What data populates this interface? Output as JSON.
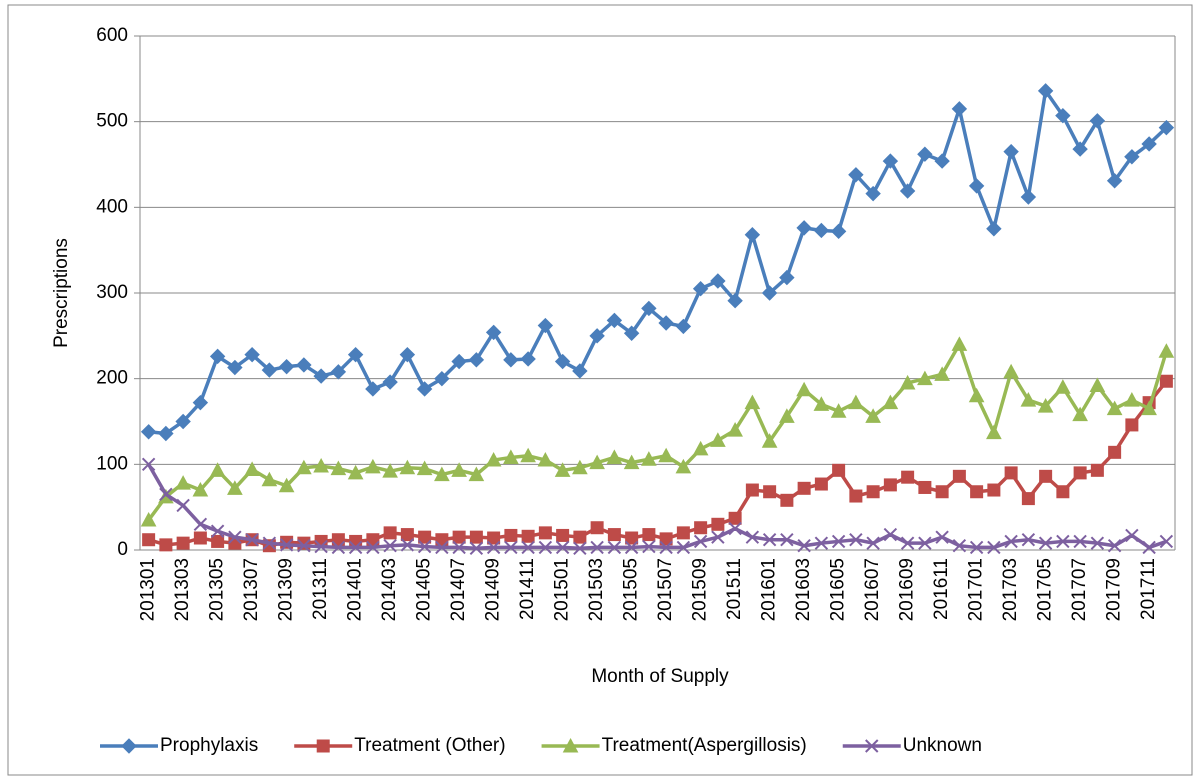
{
  "chart_data": {
    "type": "line",
    "x_label": "Month of Supply",
    "y_label": "Prescriptions",
    "categories": [
      "201301",
      null,
      "201303",
      null,
      "201305",
      null,
      "201307",
      null,
      "201309",
      null,
      "201311",
      null,
      "201401",
      null,
      "201403",
      null,
      "201405",
      null,
      "201407",
      null,
      "201409",
      null,
      "201411",
      null,
      "201501",
      null,
      "201503",
      null,
      "201505",
      null,
      "201507",
      null,
      "201509",
      null,
      "201511",
      null,
      "201601",
      null,
      "201603",
      null,
      "201605",
      null,
      "201607",
      null,
      "201609",
      null,
      "201611",
      null,
      "201701",
      null,
      "201703",
      null,
      "201705",
      null,
      "201707",
      null,
      "201709",
      null,
      "201711",
      null
    ],
    "series": [
      {
        "name": "Prophylaxis",
        "color": "#4a7ebb",
        "marker": "diamond",
        "values": [
          138,
          136,
          150,
          172,
          226,
          213,
          228,
          210,
          214,
          216,
          203,
          208,
          228,
          188,
          196,
          228,
          188,
          200,
          220,
          222,
          254,
          222,
          223,
          262,
          220,
          209,
          250,
          268,
          253,
          282,
          265,
          261,
          305,
          314,
          291,
          368,
          300,
          318,
          376,
          373,
          372,
          438,
          416,
          454,
          419,
          462,
          454,
          515,
          425,
          375,
          465,
          412,
          536,
          507,
          468,
          501,
          431,
          459,
          474,
          493
        ]
      },
      {
        "name": "Treatment (Other)",
        "color": "#be4b48",
        "marker": "square",
        "values": [
          12,
          6,
          8,
          14,
          10,
          8,
          12,
          5,
          9,
          8,
          10,
          12,
          10,
          12,
          20,
          18,
          15,
          12,
          15,
          15,
          14,
          17,
          16,
          20,
          17,
          15,
          26,
          18,
          14,
          18,
          13,
          20,
          26,
          30,
          37,
          70,
          68,
          58,
          72,
          77,
          93,
          63,
          68,
          76,
          85,
          73,
          68,
          86,
          68,
          70,
          90,
          60,
          86,
          68,
          90,
          93,
          114,
          146,
          172,
          197
        ]
      },
      {
        "name": "Treatment(Aspergillosis)",
        "color": "#98b954",
        "marker": "triangle",
        "values": [
          35,
          62,
          78,
          70,
          93,
          72,
          94,
          82,
          75,
          96,
          98,
          95,
          90,
          97,
          92,
          96,
          95,
          88,
          93,
          88,
          105,
          108,
          110,
          105,
          93,
          96,
          102,
          108,
          102,
          106,
          110,
          97,
          118,
          128,
          140,
          172,
          127,
          156,
          187,
          170,
          162,
          172,
          156,
          172,
          195,
          200,
          205,
          240,
          180,
          137,
          208,
          175,
          168,
          190,
          158,
          192,
          165,
          175,
          165,
          232
        ]
      },
      {
        "name": "Unknown",
        "color": "#7d60a0",
        "marker": "x",
        "values": [
          100,
          65,
          52,
          30,
          22,
          15,
          12,
          8,
          6,
          5,
          4,
          3,
          3,
          3,
          5,
          6,
          4,
          3,
          3,
          2,
          3,
          3,
          3,
          3,
          3,
          2,
          3,
          3,
          3,
          4,
          3,
          3,
          10,
          15,
          25,
          15,
          12,
          12,
          5,
          8,
          10,
          12,
          8,
          18,
          8,
          8,
          15,
          5,
          3,
          3,
          10,
          12,
          8,
          10,
          10,
          8,
          5,
          17,
          3,
          10
        ]
      }
    ],
    "ylim": [
      0,
      600
    ],
    "yticks": [
      0,
      100,
      200,
      300,
      400,
      500,
      600
    ],
    "grid": true,
    "legend": "bottom"
  }
}
